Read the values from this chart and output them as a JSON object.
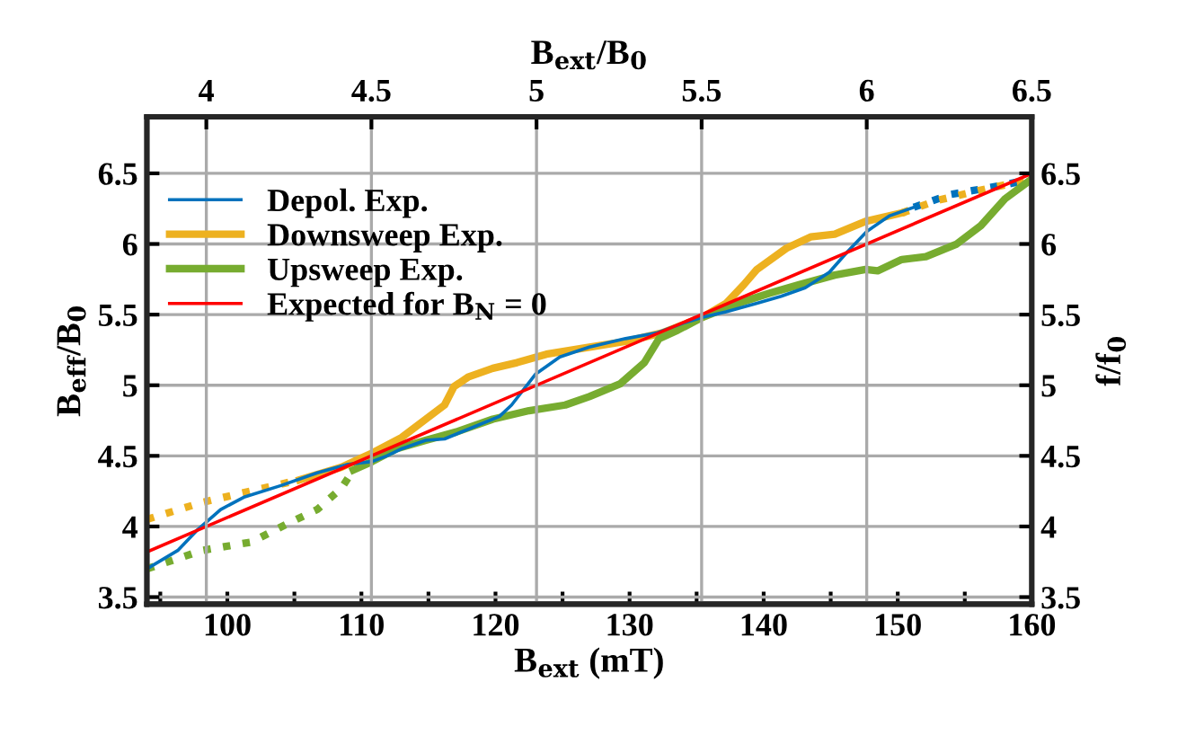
{
  "chart_data": {
    "type": "line",
    "xlabel": "B$_{ext}$ (mT)",
    "ylabel": "B$_{eff}$/B$_{0}$",
    "x2label": "B$_{ext}$/B$_{0}$",
    "y2label": "f/f$_{0}$",
    "xlim": [
      94,
      160
    ],
    "xticks": [
      {
        "value": 95,
        "label": null
      },
      100,
      {
        "value": 105,
        "label": null
      },
      110,
      {
        "value": 115,
        "label": null
      },
      120,
      {
        "value": 125,
        "label": null
      },
      130,
      {
        "value": 135,
        "label": null
      },
      140,
      {
        "value": 145,
        "label": null
      },
      150,
      {
        "value": 155,
        "label": null
      },
      160
    ],
    "x2lim": [
      3.82,
      6.5
    ],
    "x2ticks": [
      4,
      4.5,
      5,
      5.5,
      6,
      6.5
    ],
    "ylim": [
      3.45,
      6.9
    ],
    "yticks": [
      3.5,
      4,
      4.5,
      5,
      5.5,
      6,
      6.5
    ],
    "y2lim": [
      3.45,
      6.9
    ],
    "y2ticks": [
      3.5,
      4,
      4.5,
      5,
      5.5,
      6,
      6.5
    ],
    "grid": true,
    "legend": "top left",
    "series": [
      {
        "name": "Depol. Exp.",
        "color": "#0072bd",
        "line_style": "solid",
        "x": [
          94.0,
          96.3,
          97.7,
          99.5,
          101.3,
          104.0,
          106.7,
          109.0,
          110.8,
          111.9,
          113.0,
          114.8,
          116.2,
          118.0,
          120.3,
          121.2,
          123.0,
          124.8,
          127.0,
          129.7,
          132.0,
          134.0,
          135.4,
          137.2,
          139.5,
          141.3,
          143.1,
          144.9,
          146.2,
          147.7,
          149.4,
          151.2
        ],
        "values": [
          3.7,
          3.83,
          3.97,
          4.12,
          4.21,
          4.29,
          4.38,
          4.44,
          4.46,
          4.5,
          4.55,
          4.61,
          4.62,
          4.69,
          4.78,
          4.86,
          5.08,
          5.2,
          5.27,
          5.33,
          5.37,
          5.44,
          5.48,
          5.52,
          5.58,
          5.63,
          5.69,
          5.8,
          5.94,
          6.09,
          6.2,
          6.26
        ]
      },
      {
        "color": "#0072bd",
        "line_style": "dotted",
        "x": [
          151.2,
          153.9,
          157.5,
          160
        ],
        "values": [
          6.26,
          6.35,
          6.41,
          6.46
        ]
      },
      {
        "name": "Downsweep Exp.",
        "color": "#edb120",
        "line_style": "solid",
        "x": [
          105.4,
          108.5,
          110.8,
          113.0,
          114.8,
          116.2,
          116.9,
          118.0,
          119.8,
          121.6,
          123.8,
          127.0,
          129.7,
          132.4,
          135.4,
          137.2,
          138.5,
          139.5,
          141.7,
          143.5,
          145.3,
          147.6,
          150.3
        ],
        "values": [
          4.33,
          4.42,
          4.52,
          4.63,
          4.76,
          4.86,
          4.99,
          5.06,
          5.12,
          5.16,
          5.22,
          5.27,
          5.31,
          5.37,
          5.48,
          5.58,
          5.71,
          5.82,
          5.97,
          6.05,
          6.07,
          6.16,
          6.22
        ]
      },
      {
        "color": "#edb120",
        "line_style": "dotted",
        "x": [
          94.0,
          98.1,
          102.6,
          105.4
        ],
        "values": [
          4.05,
          4.17,
          4.27,
          4.33
        ]
      },
      {
        "color": "#edb120",
        "line_style": "dotted",
        "x": [
          150.3,
          153.0,
          156.6,
          160
        ],
        "values": [
          6.22,
          6.31,
          6.39,
          6.46
        ]
      },
      {
        "name": "Upsweep Exp.",
        "color": "#77ac30",
        "line_style": "solid",
        "x": [
          109.4,
          110.8,
          112.6,
          114.8,
          117.1,
          119.8,
          122.5,
          125.2,
          127.0,
          129.3,
          131.1,
          132.2,
          133.6,
          135.4,
          138.1,
          140.4,
          142.6,
          145.3,
          147.6,
          148.5,
          150.3,
          152.1,
          154.4,
          156.2,
          158.0,
          160
        ],
        "values": [
          4.4,
          4.46,
          4.55,
          4.61,
          4.67,
          4.76,
          4.82,
          4.86,
          4.92,
          5.01,
          5.16,
          5.33,
          5.39,
          5.48,
          5.58,
          5.65,
          5.71,
          5.78,
          5.82,
          5.81,
          5.89,
          5.91,
          6.0,
          6.13,
          6.32,
          6.46
        ]
      },
      {
        "color": "#77ac30",
        "line_style": "dotted",
        "x": [
          94.0,
          98.1,
          101.8,
          104.5,
          106.7,
          108.5,
          109.4
        ],
        "values": [
          3.7,
          3.83,
          3.89,
          4.02,
          4.12,
          4.27,
          4.4
        ]
      },
      {
        "name": "Expected for B$_{N}$ = 0",
        "color": "#ff0000",
        "line_style": "solid",
        "x": [
          94,
          160
        ],
        "values": [
          3.82,
          6.5
        ]
      }
    ]
  }
}
